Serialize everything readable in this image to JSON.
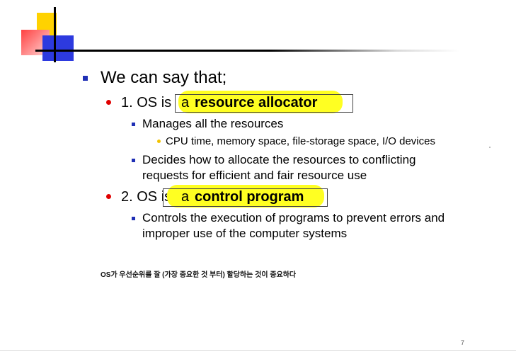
{
  "heading": "We can say that;",
  "point1": {
    "number_prefix": "1. OS is ",
    "article": "a ",
    "highlight": "resource allocator",
    "subitems": [
      "Manages all the resources",
      "Decides how to allocate the resources to conflicting",
      "requests for efficient and fair resource use"
    ],
    "subsub": "CPU time, memory space, file-storage space, I/O devices"
  },
  "point2": {
    "number_prefix": "2. OS is ",
    "article": "a ",
    "highlight": "control program",
    "subitems": [
      "Controls the execution of programs to prevent errors and",
      "improper use of the computer systems"
    ]
  },
  "note": "OS가 우선순위를 잘 (가장 중요한 것 부터) 할당하는 것이 중요하다",
  "page_number": "7",
  "colors": {
    "highlight": "#ffff22",
    "bullet_blue": "#1f2fb5",
    "bullet_red": "#e00000",
    "deco_yellow": "#ffd200",
    "deco_red": "#ff4040",
    "deco_blue": "#2d3adf"
  }
}
